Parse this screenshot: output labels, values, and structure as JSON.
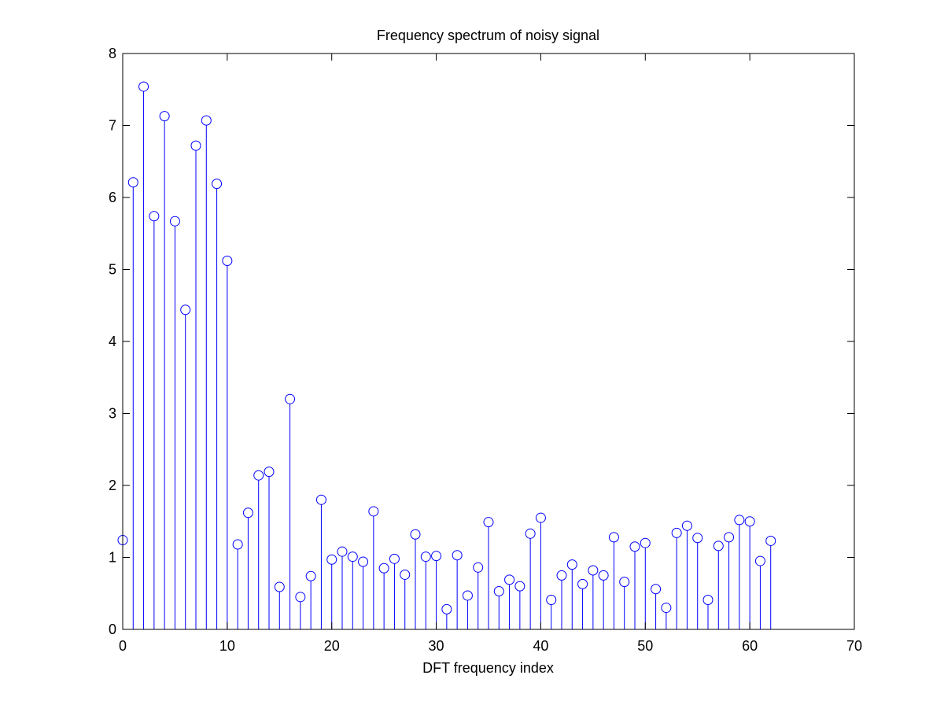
{
  "chart_data": {
    "type": "stem",
    "title": "Frequency spectrum of noisy signal",
    "xlabel": "DFT frequency index",
    "ylabel": "",
    "xlim": [
      0,
      70
    ],
    "ylim": [
      0,
      8
    ],
    "xticks": [
      0,
      10,
      20,
      30,
      40,
      50,
      60,
      70
    ],
    "yticks": [
      0,
      1,
      2,
      3,
      4,
      5,
      6,
      7,
      8
    ],
    "grid": false,
    "marker": "circle",
    "color": "#0000ff",
    "x": [
      0,
      1,
      2,
      3,
      4,
      5,
      6,
      7,
      8,
      9,
      10,
      11,
      12,
      13,
      14,
      15,
      16,
      17,
      18,
      19,
      20,
      21,
      22,
      23,
      24,
      25,
      26,
      27,
      28,
      29,
      30,
      31,
      32,
      33,
      34,
      35,
      36,
      37,
      38,
      39,
      40,
      41,
      42,
      43,
      44,
      45,
      46,
      47,
      48,
      49,
      50,
      51,
      52,
      53,
      54,
      55,
      56,
      57,
      58,
      59,
      60,
      61,
      62
    ],
    "values": [
      1.24,
      6.21,
      7.54,
      5.74,
      7.13,
      5.67,
      4.44,
      6.72,
      7.07,
      6.19,
      5.12,
      1.18,
      1.62,
      2.14,
      2.19,
      0.59,
      3.2,
      0.45,
      0.74,
      1.8,
      0.97,
      1.08,
      1.01,
      0.94,
      1.64,
      0.85,
      0.98,
      0.76,
      1.32,
      1.01,
      1.02,
      0.28,
      1.03,
      0.47,
      0.86,
      1.49,
      0.53,
      0.69,
      0.6,
      1.33,
      1.55,
      0.41,
      0.75,
      0.9,
      0.63,
      0.82,
      0.75,
      1.28,
      0.66,
      1.15,
      1.2,
      0.56,
      0.3,
      1.34,
      1.44,
      1.27,
      0.41,
      1.16,
      1.28,
      1.52,
      1.5,
      0.95,
      1.23
    ]
  }
}
